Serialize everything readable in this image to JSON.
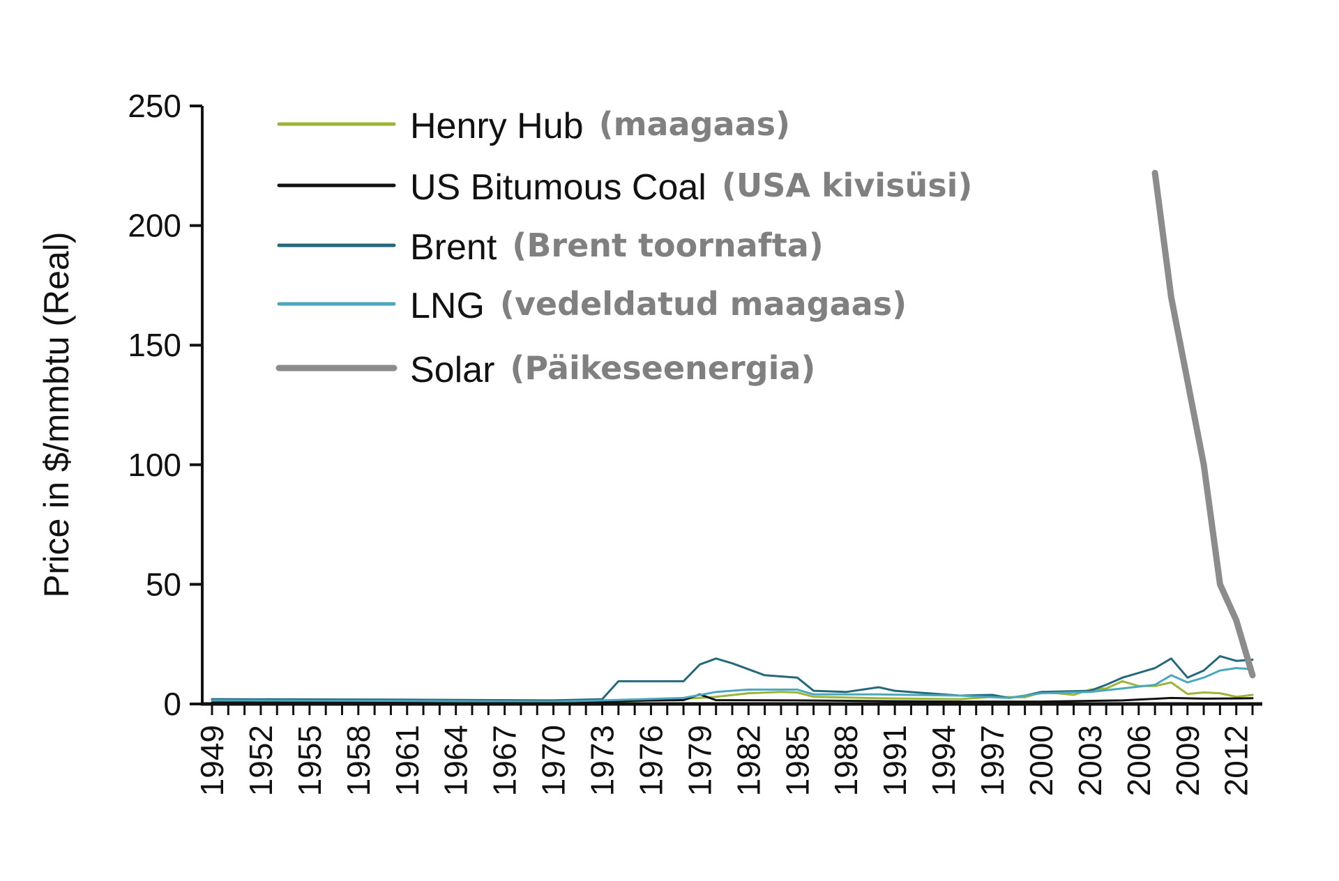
{
  "chart_data": {
    "type": "line",
    "title": "",
    "xlabel": "",
    "ylabel": "Price in $/mmbtu (Real)",
    "ylim": [
      0,
      250
    ],
    "yticks": [
      "0",
      "50",
      "100",
      "150",
      "200",
      "250"
    ],
    "xlim": [
      1949,
      2013
    ],
    "xticks": [
      "1949",
      "1952",
      "1955",
      "1958",
      "1961",
      "1964",
      "1967",
      "1970",
      "1973",
      "1976",
      "1979",
      "1982",
      "1985",
      "1988",
      "1991",
      "1994",
      "1997",
      "2000",
      "2003",
      "2006",
      "2009",
      "2012"
    ],
    "grid": false,
    "legend_position": "top-left",
    "series": [
      {
        "name": "Henry Hub",
        "note": "(maagaas)",
        "color": "#9bb536",
        "stroke": 3,
        "points": [
          [
            1949,
            0.4
          ],
          [
            1955,
            0.5
          ],
          [
            1960,
            0.6
          ],
          [
            1965,
            0.7
          ],
          [
            1970,
            0.7
          ],
          [
            1973,
            0.9
          ],
          [
            1975,
            1.2
          ],
          [
            1977,
            1.8
          ],
          [
            1979,
            2.5
          ],
          [
            1980,
            3.0
          ],
          [
            1982,
            4.5
          ],
          [
            1984,
            5.0
          ],
          [
            1985,
            4.8
          ],
          [
            1986,
            3.0
          ],
          [
            1990,
            2.4
          ],
          [
            1995,
            2.0
          ],
          [
            1997,
            3.0
          ],
          [
            1999,
            2.8
          ],
          [
            2000,
            4.8
          ],
          [
            2001,
            4.5
          ],
          [
            2002,
            3.8
          ],
          [
            2003,
            6.0
          ],
          [
            2004,
            6.5
          ],
          [
            2005,
            9.5
          ],
          [
            2006,
            7.5
          ],
          [
            2007,
            7.5
          ],
          [
            2008,
            9.0
          ],
          [
            2009,
            4.2
          ],
          [
            2010,
            4.8
          ],
          [
            2011,
            4.5
          ],
          [
            2012,
            3.0
          ],
          [
            2013,
            3.8
          ]
        ]
      },
      {
        "name": "US Bitumous Coal",
        "note": "(USA kivisüsi)",
        "color": "#111111",
        "stroke": 3,
        "points": [
          [
            1949,
            0.6
          ],
          [
            1960,
            0.6
          ],
          [
            1970,
            0.7
          ],
          [
            1973,
            0.9
          ],
          [
            1975,
            1.4
          ],
          [
            1978,
            1.6
          ],
          [
            1979,
            4.0
          ],
          [
            1980,
            1.6
          ],
          [
            1985,
            1.5
          ],
          [
            1990,
            1.2
          ],
          [
            1995,
            1.0
          ],
          [
            2000,
            1.0
          ],
          [
            2005,
            1.5
          ],
          [
            2008,
            2.5
          ],
          [
            2010,
            2.2
          ],
          [
            2013,
            2.4
          ]
        ]
      },
      {
        "name": "Brent",
        "note": "(Brent toornafta)",
        "color": "#24687c",
        "stroke": 3,
        "points": [
          [
            1949,
            2.0
          ],
          [
            1960,
            1.8
          ],
          [
            1970,
            1.5
          ],
          [
            1973,
            2.0
          ],
          [
            1974,
            9.5
          ],
          [
            1978,
            9.5
          ],
          [
            1979,
            16.5
          ],
          [
            1980,
            19.0
          ],
          [
            1981,
            17.0
          ],
          [
            1983,
            12.0
          ],
          [
            1985,
            11.0
          ],
          [
            1986,
            5.5
          ],
          [
            1988,
            5.0
          ],
          [
            1990,
            7.0
          ],
          [
            1991,
            5.5
          ],
          [
            1993,
            4.5
          ],
          [
            1995,
            3.5
          ],
          [
            1997,
            3.8
          ],
          [
            1998,
            2.5
          ],
          [
            1999,
            3.5
          ],
          [
            2000,
            5.0
          ],
          [
            2003,
            5.5
          ],
          [
            2004,
            8.0
          ],
          [
            2005,
            11.0
          ],
          [
            2006,
            13.0
          ],
          [
            2007,
            15.0
          ],
          [
            2008,
            19.0
          ],
          [
            2009,
            11.0
          ],
          [
            2010,
            14.0
          ],
          [
            2011,
            20.0
          ],
          [
            2012,
            18.0
          ],
          [
            2013,
            18.5
          ]
        ]
      },
      {
        "name": "LNG",
        "note": "(vedeldatud maagaas)",
        "color": "#4aa7bd",
        "stroke": 3,
        "points": [
          [
            1949,
            1.5
          ],
          [
            1960,
            1.3
          ],
          [
            1970,
            1.0
          ],
          [
            1973,
            1.5
          ],
          [
            1978,
            2.5
          ],
          [
            1980,
            5.0
          ],
          [
            1982,
            6.0
          ],
          [
            1985,
            6.0
          ],
          [
            1986,
            4.0
          ],
          [
            1990,
            4.0
          ],
          [
            1995,
            3.5
          ],
          [
            1998,
            2.5
          ],
          [
            2000,
            4.5
          ],
          [
            2003,
            5.0
          ],
          [
            2005,
            6.5
          ],
          [
            2007,
            8.0
          ],
          [
            2008,
            12.0
          ],
          [
            2009,
            9.0
          ],
          [
            2010,
            11.0
          ],
          [
            2011,
            14.0
          ],
          [
            2012,
            15.0
          ],
          [
            2013,
            14.5
          ]
        ]
      },
      {
        "name": "Solar",
        "note": "(Päikeseenergia)",
        "color": "#8c8c8c",
        "stroke": 9,
        "points": [
          [
            2007,
            222
          ],
          [
            2008,
            170
          ],
          [
            2009,
            135
          ],
          [
            2010,
            100
          ],
          [
            2011,
            50
          ],
          [
            2012,
            35
          ],
          [
            2013,
            12
          ]
        ]
      }
    ]
  }
}
